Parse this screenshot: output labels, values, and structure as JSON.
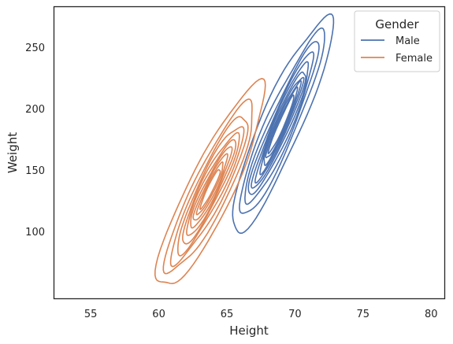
{
  "chart_data": {
    "type": "kde-contour",
    "title": "",
    "xlabel": "Height",
    "ylabel": "Weight",
    "xlim": [
      52.3,
      81.0
    ],
    "ylim": [
      45,
      283
    ],
    "xticks": [
      55,
      60,
      65,
      70,
      75,
      80
    ],
    "yticks": [
      100,
      150,
      200,
      250
    ],
    "grid": false,
    "legend": {
      "title": "Gender",
      "placement": "top-right",
      "entries": [
        "Male",
        "Female"
      ]
    },
    "series": [
      {
        "name": "Male",
        "color": "#4c72b0",
        "center": [
          69.0,
          187.0
        ],
        "levels": [
          {
            "a": 8.6,
            "b": 1.0,
            "angle": 66.5
          },
          {
            "a": 7.4,
            "b": 0.75,
            "angle": 66.5
          },
          {
            "a": 6.5,
            "b": 0.6,
            "angle": 66.5
          },
          {
            "a": 5.7,
            "b": 0.5,
            "angle": 66.5
          },
          {
            "a": 5.0,
            "b": 0.42,
            "angle": 66.5
          },
          {
            "a": 4.4,
            "b": 0.35,
            "angle": 66.5
          },
          {
            "a": 3.8,
            "b": 0.29,
            "angle": 66.5
          },
          {
            "a": 3.3,
            "b": 0.24,
            "angle": 66.5
          },
          {
            "a": 2.8,
            "b": 0.19,
            "angle": 66.5
          },
          {
            "a": 2.3,
            "b": 0.14,
            "angle": 66.5
          }
        ]
      },
      {
        "name": "Female",
        "color": "#dd8452",
        "center": [
          63.8,
          135.0
        ],
        "levels": [
          {
            "a": 8.3,
            "b": 1.1,
            "angle": 64
          },
          {
            "a": 6.9,
            "b": 0.88,
            "angle": 64
          },
          {
            "a": 6.0,
            "b": 0.72,
            "angle": 64
          },
          {
            "a": 5.2,
            "b": 0.6,
            "angle": 64
          },
          {
            "a": 4.5,
            "b": 0.5,
            "angle": 64
          },
          {
            "a": 3.9,
            "b": 0.42,
            "angle": 64
          },
          {
            "a": 3.3,
            "b": 0.34,
            "angle": 64
          },
          {
            "a": 2.7,
            "b": 0.27,
            "angle": 64
          },
          {
            "a": 2.1,
            "b": 0.2,
            "angle": 64
          },
          {
            "a": 1.6,
            "b": 0.14,
            "angle": 64
          }
        ]
      }
    ]
  }
}
